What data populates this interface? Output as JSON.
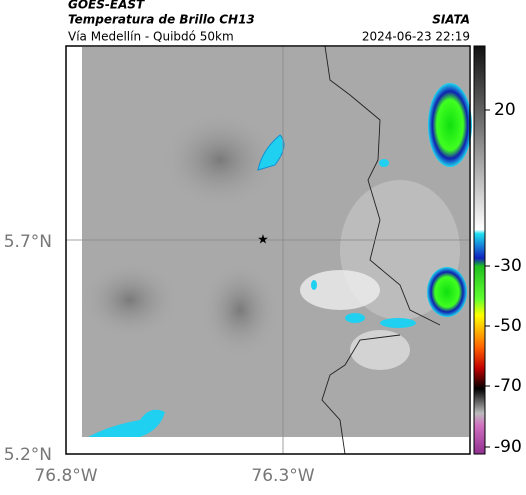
{
  "header": {
    "satellite": "GOES-EAST",
    "title": "Temperatura de Brillo CH13",
    "source": "SIATA",
    "subtitle": "Vía Medellín - Quibdó 50km",
    "timestamp": "2024-06-23 22:19"
  },
  "map": {
    "lat_labels": [
      "5.7°N",
      "5.2°N"
    ],
    "lon_labels": [
      "76.8°W",
      "76.3°W"
    ]
  },
  "colorbar": {
    "ticks": [
      20,
      -30,
      -50,
      -70,
      -90
    ]
  }
}
